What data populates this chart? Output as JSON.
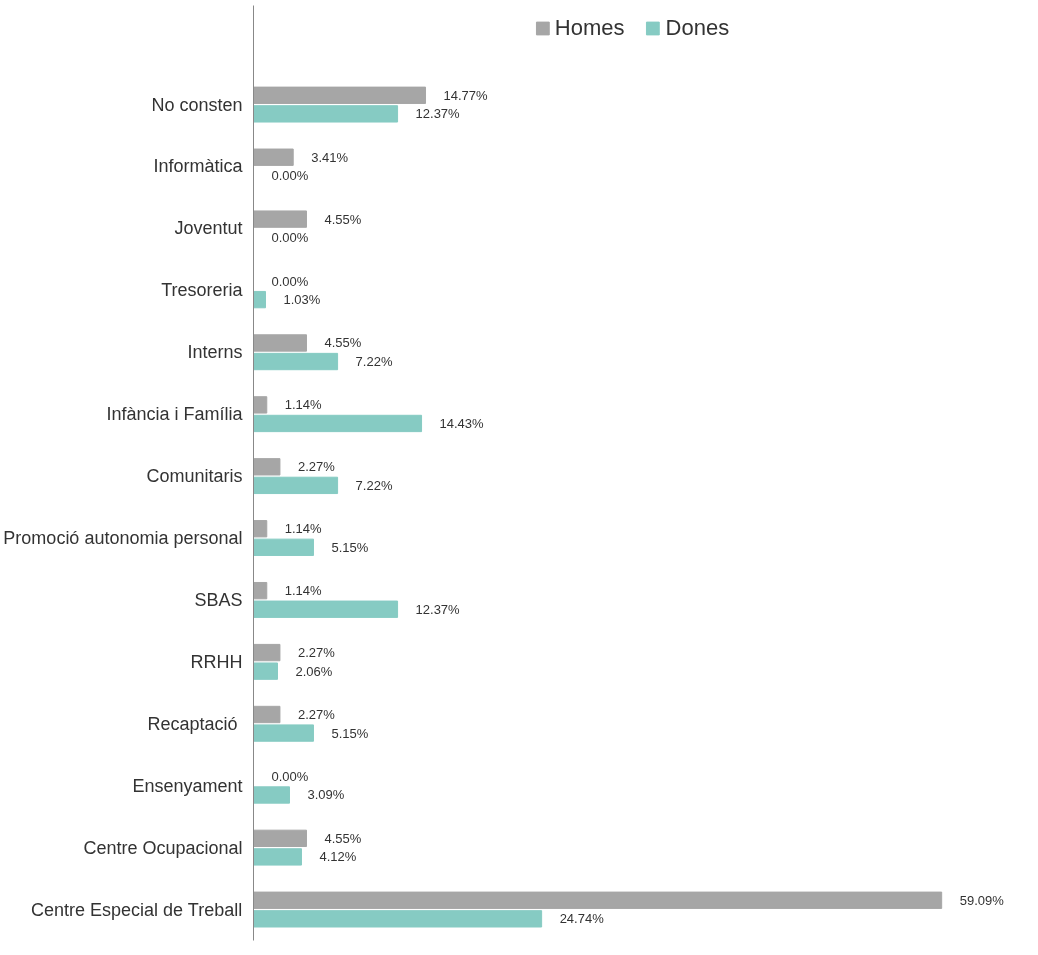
{
  "chart_data": {
    "type": "bar",
    "orientation": "horizontal",
    "legend": "top",
    "tick_labels": "y",
    "grid": false,
    "categories": [
      "No consten",
      "Informàtica",
      "Joventut",
      "Tresoreria",
      "Interns",
      "Infància i Família",
      "Comunitaris",
      "Promoció autonomia personal",
      "SBAS",
      "RRHH",
      "Recaptació ",
      "Ensenyament",
      "Centre Ocupacional",
      "Centre Especial de Treball"
    ],
    "series": [
      {
        "name": "Homes",
        "color": "#a6a6a6",
        "values": [
          14.77,
          3.41,
          4.55,
          0.0,
          4.55,
          1.14,
          2.27,
          1.14,
          1.14,
          2.27,
          2.27,
          0.0,
          4.55,
          59.09
        ],
        "value_labels": [
          "14.77%",
          "3.41%",
          "4.55%",
          "0.00%",
          "4.55%",
          "1.14%",
          "2.27%",
          "1.14%",
          "1.14%",
          "2.27%",
          "2.27%",
          "0.00%",
          "4.55%",
          "59.09%"
        ]
      },
      {
        "name": "Dones",
        "color": "#86cbc3",
        "values": [
          12.37,
          0.0,
          0.0,
          1.03,
          7.22,
          14.43,
          7.22,
          5.15,
          12.37,
          2.06,
          5.15,
          3.09,
          4.12,
          24.74
        ],
        "value_labels": [
          "12.37%",
          "0.00%",
          "0.00%",
          "1.03%",
          "7.22%",
          "14.43%",
          "7.22%",
          "5.15%",
          "12.37%",
          "2.06%",
          "5.15%",
          "3.09%",
          "4.12%",
          "24.74%"
        ]
      }
    ]
  }
}
